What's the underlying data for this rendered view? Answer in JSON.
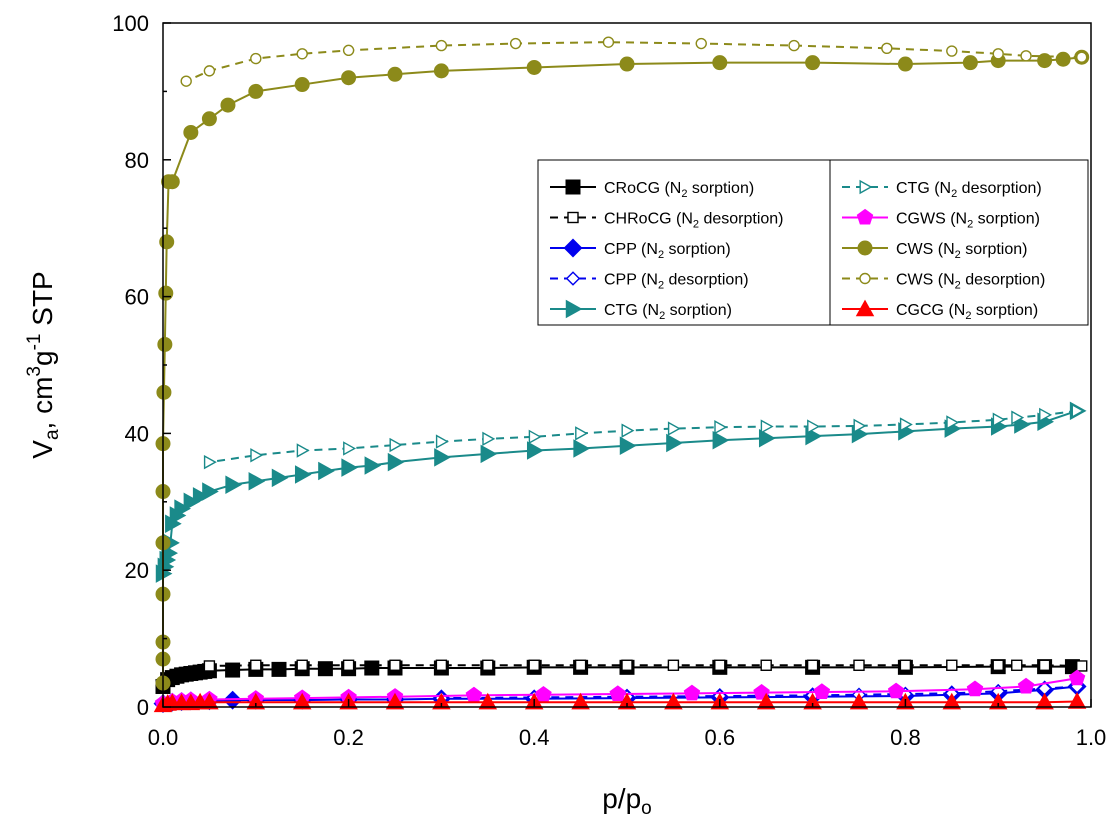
{
  "chart_data": {
    "type": "line",
    "xlabel_main": "p/p",
    "xlabel_sub": "o",
    "ylabel": {
      "v": "V",
      "a": "a",
      "mid": ", cm",
      "sup3": "3",
      "g": "g",
      "supm1": "-1",
      "tail": " STP"
    },
    "xlim": [
      0.0,
      1.0
    ],
    "ylim": [
      0,
      100
    ],
    "xticks": [
      "0.0",
      "0.2",
      "0.4",
      "0.6",
      "0.8",
      "1.0"
    ],
    "yticks": [
      "0",
      "20",
      "40",
      "60",
      "80",
      "100"
    ],
    "grid": false,
    "legend_position": "top-right",
    "series": [
      {
        "name": "CRoCG (N₂ sorption)",
        "lab_pre": "CRoCG (N",
        "lab_sub": "2",
        "lab_post": " sorption)",
        "color": "#000000",
        "marker": "square",
        "filled": true,
        "dashed": false,
        "x": [
          0.0,
          0.005,
          0.01,
          0.015,
          0.02,
          0.025,
          0.03,
          0.035,
          0.04,
          0.045,
          0.05,
          0.075,
          0.1,
          0.125,
          0.15,
          0.175,
          0.2,
          0.225,
          0.25,
          0.3,
          0.35,
          0.4,
          0.45,
          0.5,
          0.6,
          0.7,
          0.8,
          0.9,
          0.95,
          0.98
        ],
        "y": [
          3.0,
          4.0,
          4.3,
          4.5,
          4.7,
          4.8,
          4.9,
          5.0,
          5.1,
          5.2,
          5.3,
          5.4,
          5.5,
          5.5,
          5.6,
          5.6,
          5.6,
          5.7,
          5.7,
          5.7,
          5.7,
          5.8,
          5.8,
          5.8,
          5.8,
          5.8,
          5.8,
          5.9,
          5.9,
          5.9
        ]
      },
      {
        "name": "CHRoCG (N₂ desorption)",
        "lab_pre": "CHRoCG (N",
        "lab_sub": "2",
        "lab_post": " desorption)",
        "color": "#000000",
        "marker": "square",
        "filled": false,
        "dashed": true,
        "x": [
          0.99,
          0.95,
          0.92,
          0.9,
          0.85,
          0.8,
          0.75,
          0.7,
          0.65,
          0.6,
          0.55,
          0.5,
          0.45,
          0.4,
          0.35,
          0.3,
          0.25,
          0.2,
          0.15,
          0.1,
          0.05
        ],
        "y": [
          6.0,
          6.1,
          6.1,
          6.1,
          6.1,
          6.1,
          6.1,
          6.1,
          6.1,
          6.1,
          6.1,
          6.1,
          6.1,
          6.1,
          6.1,
          6.1,
          6.1,
          6.1,
          6.1,
          6.1,
          6.0
        ]
      },
      {
        "name": "CPP (N₂ sorption)",
        "lab_pre": "CPP (N",
        "lab_sub": "2",
        "lab_post": " sorption)",
        "color": "#0000ee",
        "marker": "diamond",
        "filled": true,
        "dashed": false,
        "x": [
          0.0,
          0.01,
          0.02,
          0.03,
          0.05,
          0.075,
          0.1,
          0.15,
          0.2,
          0.25,
          0.3,
          0.4,
          0.5,
          0.6,
          0.7,
          0.8,
          0.85,
          0.9,
          0.95,
          0.985
        ],
        "y": [
          0.5,
          0.7,
          0.8,
          0.9,
          0.9,
          1.0,
          1.0,
          1.0,
          1.1,
          1.1,
          1.2,
          1.2,
          1.3,
          1.4,
          1.5,
          1.6,
          1.8,
          2.0,
          2.5,
          3.0
        ]
      },
      {
        "name": "CPP (N₂ desorption)",
        "lab_pre": "CPP (N",
        "lab_sub": "2",
        "lab_post": " desorption)",
        "color": "#0000ee",
        "marker": "diamond",
        "filled": false,
        "dashed": true,
        "x": [
          0.985,
          0.95,
          0.9,
          0.85,
          0.8,
          0.75,
          0.7,
          0.6,
          0.5,
          0.4,
          0.3
        ],
        "y": [
          3.0,
          2.7,
          2.3,
          2.0,
          1.9,
          1.8,
          1.7,
          1.6,
          1.5,
          1.4,
          1.3
        ]
      },
      {
        "name": "CTG (N₂ sorption)",
        "lab_pre": "CTG (N",
        "lab_sub": "2",
        "lab_post": " sorption)",
        "color": "#1a8a8a",
        "marker": "triangle-right",
        "filled": true,
        "dashed": false,
        "x": [
          0.0,
          0.002,
          0.004,
          0.006,
          0.008,
          0.01,
          0.015,
          0.02,
          0.03,
          0.04,
          0.05,
          0.075,
          0.1,
          0.125,
          0.15,
          0.175,
          0.2,
          0.225,
          0.25,
          0.3,
          0.35,
          0.4,
          0.45,
          0.5,
          0.55,
          0.6,
          0.65,
          0.7,
          0.75,
          0.8,
          0.85,
          0.9,
          0.925,
          0.95,
          0.985
        ],
        "y": [
          19.5,
          20.5,
          21.5,
          22.5,
          24.0,
          26.8,
          28.0,
          29.0,
          30.0,
          30.8,
          31.5,
          32.5,
          33.0,
          33.5,
          34.0,
          34.5,
          35.0,
          35.3,
          35.8,
          36.5,
          37.0,
          37.5,
          37.8,
          38.2,
          38.6,
          39.0,
          39.3,
          39.6,
          39.9,
          40.3,
          40.7,
          41.0,
          41.3,
          41.7,
          43.3
        ]
      },
      {
        "name": "CTG (N₂ desorption)",
        "lab_pre": "CTG (N",
        "lab_sub": "2",
        "lab_post": " desorption)",
        "color": "#1a8a8a",
        "marker": "triangle-right",
        "filled": false,
        "dashed": true,
        "x": [
          0.985,
          0.95,
          0.92,
          0.9,
          0.85,
          0.8,
          0.75,
          0.7,
          0.65,
          0.6,
          0.55,
          0.5,
          0.45,
          0.4,
          0.35,
          0.3,
          0.25,
          0.2,
          0.15,
          0.1,
          0.05
        ],
        "y": [
          43.3,
          42.7,
          42.3,
          42.0,
          41.6,
          41.3,
          41.1,
          41.0,
          41.0,
          40.9,
          40.7,
          40.4,
          40.0,
          39.5,
          39.2,
          38.8,
          38.3,
          37.8,
          37.5,
          36.8,
          35.8
        ]
      },
      {
        "name": "CGWS (N₂ sorption)",
        "lab_pre": "CGWS (N",
        "lab_sub": "2",
        "lab_post": " sorption)",
        "color": "#ff00ff",
        "marker": "pentagon",
        "filled": true,
        "dashed": false,
        "x": [
          0.0,
          0.01,
          0.02,
          0.03,
          0.05,
          0.1,
          0.15,
          0.2,
          0.25,
          0.335,
          0.41,
          0.49,
          0.57,
          0.645,
          0.71,
          0.79,
          0.875,
          0.93,
          0.985
        ],
        "y": [
          0.5,
          0.8,
          0.9,
          1.0,
          1.1,
          1.2,
          1.3,
          1.4,
          1.5,
          1.7,
          1.8,
          1.9,
          2.0,
          2.1,
          2.2,
          2.3,
          2.6,
          3.0,
          4.2
        ]
      },
      {
        "name": "CWS (N₂ sorption)",
        "lab_pre": "CWS (N",
        "lab_sub": "2",
        "lab_post": " sorption)",
        "color": "#8c8a1a",
        "marker": "circle",
        "filled": true,
        "dashed": false,
        "x": [
          0.0,
          0.0,
          0.0,
          0.0,
          0.0,
          0.0,
          0.0,
          0.001,
          0.002,
          0.003,
          0.004,
          0.006,
          0.01,
          0.03,
          0.05,
          0.07,
          0.1,
          0.15,
          0.2,
          0.25,
          0.3,
          0.4,
          0.5,
          0.6,
          0.7,
          0.8,
          0.87,
          0.9,
          0.95,
          0.97,
          0.99
        ],
        "y": [
          3.5,
          7.0,
          9.5,
          16.5,
          24.0,
          31.5,
          38.5,
          46.0,
          53.0,
          60.5,
          68.0,
          76.8,
          76.8,
          84.0,
          86.0,
          88.0,
          90.0,
          91.0,
          92.0,
          92.5,
          93.0,
          93.5,
          94.0,
          94.2,
          94.2,
          94.0,
          94.2,
          94.5,
          94.5,
          94.7,
          95.0
        ]
      },
      {
        "name": "CWS (N₂ desorption)",
        "lab_pre": "CWS (N",
        "lab_sub": "2",
        "lab_post": " desorption)",
        "color": "#8c8a1a",
        "marker": "circle",
        "filled": false,
        "dashed": true,
        "x": [
          0.99,
          0.93,
          0.9,
          0.85,
          0.78,
          0.68,
          0.58,
          0.48,
          0.38,
          0.3,
          0.2,
          0.15,
          0.1,
          0.05,
          0.025
        ],
        "y": [
          95.0,
          95.2,
          95.5,
          95.9,
          96.3,
          96.7,
          97.0,
          97.2,
          97.0,
          96.7,
          96.0,
          95.5,
          94.8,
          93.0,
          91.5
        ]
      },
      {
        "name": "CGCG (N₂ sorption)",
        "lab_pre": "CGCG (N",
        "lab_sub": "2",
        "lab_post": " sorption)",
        "color": "#ff0000",
        "marker": "triangle-up",
        "filled": true,
        "dashed": false,
        "x": [
          0.0,
          0.005,
          0.01,
          0.02,
          0.03,
          0.04,
          0.05,
          0.1,
          0.15,
          0.2,
          0.25,
          0.3,
          0.35,
          0.4,
          0.45,
          0.5,
          0.55,
          0.6,
          0.65,
          0.7,
          0.75,
          0.8,
          0.85,
          0.9,
          0.95,
          0.985
        ],
        "y": [
          0.3,
          0.5,
          0.6,
          0.6,
          0.6,
          0.7,
          0.7,
          0.7,
          0.7,
          0.7,
          0.7,
          0.7,
          0.7,
          0.7,
          0.7,
          0.7,
          0.7,
          0.7,
          0.7,
          0.7,
          0.7,
          0.7,
          0.7,
          0.7,
          0.7,
          0.8
        ]
      }
    ]
  }
}
